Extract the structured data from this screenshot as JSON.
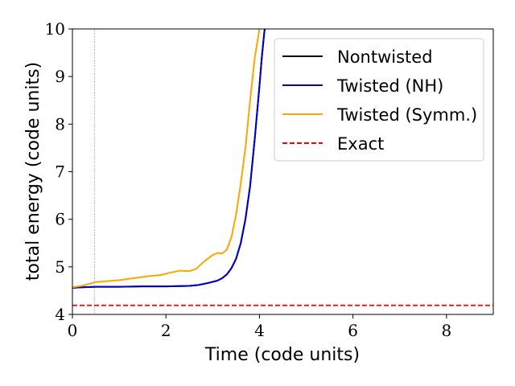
{
  "chart_data": {
    "type": "line",
    "title": "",
    "xlabel": "Time (code units)",
    "ylabel": "total energy (code units)",
    "xlim": [
      0,
      9
    ],
    "ylim": [
      4,
      10
    ],
    "x_ticks": [
      0,
      2,
      4,
      6,
      8
    ],
    "y_ticks": [
      4,
      5,
      6,
      7,
      8,
      9,
      10
    ],
    "grid": false,
    "legend_position": "top-right",
    "vline": {
      "x": 0.47,
      "color": "#808080",
      "style": "dotted"
    },
    "series": [
      {
        "name": "Nontwisted",
        "color": "#000000",
        "style": "solid",
        "x": [
          0,
          0.2,
          0.5,
          1.0,
          1.5,
          2.0,
          2.5,
          2.7,
          2.9,
          3.1,
          3.2,
          3.3,
          3.4,
          3.5,
          3.6,
          3.7,
          3.8,
          3.9,
          4.0,
          4.05,
          4.1,
          4.15
        ],
        "y": [
          4.56,
          4.57,
          4.58,
          4.58,
          4.59,
          4.59,
          4.6,
          4.62,
          4.66,
          4.71,
          4.76,
          4.84,
          4.97,
          5.17,
          5.5,
          6.0,
          6.7,
          7.7,
          8.8,
          9.4,
          9.9,
          10.3
        ]
      },
      {
        "name": "Twisted (NH)",
        "color": "#0000cc",
        "style": "solid",
        "x": [
          0,
          0.2,
          0.5,
          1.0,
          1.5,
          2.0,
          2.5,
          2.7,
          2.9,
          3.1,
          3.2,
          3.3,
          3.4,
          3.5,
          3.6,
          3.7,
          3.8,
          3.9,
          4.0,
          4.05,
          4.1,
          4.15
        ],
        "y": [
          4.56,
          4.57,
          4.58,
          4.58,
          4.59,
          4.59,
          4.6,
          4.62,
          4.66,
          4.71,
          4.76,
          4.84,
          4.97,
          5.17,
          5.5,
          6.0,
          6.7,
          7.7,
          8.8,
          9.4,
          9.9,
          10.3
        ]
      },
      {
        "name": "Twisted (Symm.)",
        "color": "#ffa500",
        "style": "solid",
        "x": [
          0,
          0.2,
          0.5,
          1.0,
          1.3,
          1.6,
          1.9,
          2.1,
          2.3,
          2.5,
          2.65,
          2.8,
          3.0,
          3.1,
          3.2,
          3.3,
          3.4,
          3.5,
          3.6,
          3.7,
          3.8,
          3.9,
          4.0,
          4.05
        ],
        "y": [
          4.57,
          4.6,
          4.68,
          4.72,
          4.76,
          4.8,
          4.83,
          4.88,
          4.92,
          4.91,
          4.96,
          5.1,
          5.25,
          5.29,
          5.28,
          5.36,
          5.62,
          6.1,
          6.75,
          7.5,
          8.5,
          9.4,
          10.0,
          10.2
        ]
      },
      {
        "name": "Exact",
        "color": "#ff0000",
        "style": "dashed",
        "x": [
          0,
          9
        ],
        "y": [
          4.19,
          4.19
        ]
      }
    ]
  }
}
